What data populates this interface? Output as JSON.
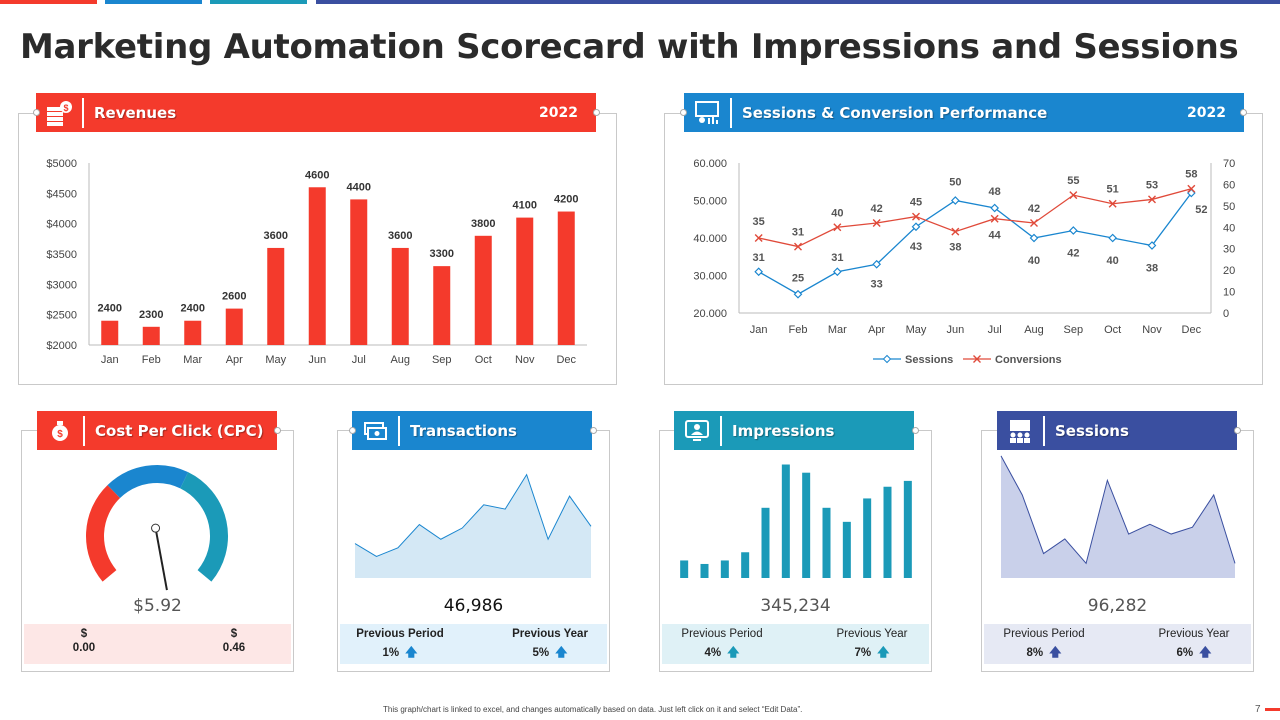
{
  "page_title": "Marketing Automation Scorecard with Impressions and Sessions",
  "footer_note": "This graph/chart is linked to excel, and changes automatically based on data. Just left click on it and select “Edit Data”.",
  "page_number": "7",
  "colors": {
    "red": "#f43a2c",
    "blue": "#1a86cf",
    "teal": "#1b9ab8",
    "navy": "#3a4fa0"
  },
  "revenues": {
    "title": "Revenues",
    "year": "2022",
    "icon": "money-stack-icon"
  },
  "sessions_conv": {
    "title": "Sessions & Conversion Performance",
    "year": "2022",
    "icon": "analytics-person-icon"
  },
  "cpc": {
    "title": "Cost Per Click (CPC)",
    "value": "$5.92",
    "icon": "money-bag-icon",
    "left_label": "$",
    "left_value": "0.00",
    "right_label": "$",
    "right_value": "0.46"
  },
  "transactions": {
    "title": "Transactions",
    "value": "46,986",
    "icon": "money-transfer-icon",
    "prev_period_label": "Previous Period",
    "prev_period_value": "1%",
    "prev_year_label": "Previous Year",
    "prev_year_value": "5%"
  },
  "impressions": {
    "title": "Impressions",
    "value": "345,234",
    "icon": "monitor-user-icon",
    "prev_period_label": "Previous Period",
    "prev_period_value": "4%",
    "prev_year_label": "Previous Year",
    "prev_year_value": "7%"
  },
  "sessions": {
    "title": "Sessions",
    "value": "96,282",
    "icon": "presentation-group-icon",
    "prev_period_label": "Previous Period",
    "prev_period_value": "8%",
    "prev_year_label": "Previous Year",
    "prev_year_value": "6%"
  },
  "chart_data": [
    {
      "type": "bar",
      "categories": [
        "Jan",
        "Feb",
        "Mar",
        "Apr",
        "May",
        "Jun",
        "Jul",
        "Aug",
        "Sep",
        "Oct",
        "Nov",
        "Dec"
      ],
      "values": [
        2400,
        2300,
        2400,
        2600,
        3600,
        4600,
        4400,
        3600,
        3300,
        3800,
        4100,
        4200
      ],
      "ylim": [
        2000,
        5000
      ],
      "yticks": [
        "$2000",
        "$2500",
        "$3000",
        "$3500",
        "$4000",
        "$4500",
        "$5000"
      ],
      "grid": false,
      "legend": "none",
      "color": "#f43a2c"
    },
    {
      "type": "line",
      "categories": [
        "Jan",
        "Feb",
        "Mar",
        "Apr",
        "May",
        "Jun",
        "Jul",
        "Aug",
        "Sep",
        "Oct",
        "Nov",
        "Dec"
      ],
      "series": [
        {
          "name": "Sessions",
          "axis": "left",
          "values": [
            31,
            25,
            31,
            33,
            43,
            50,
            48,
            40,
            42,
            40,
            38,
            52
          ],
          "labels": [
            "31",
            "25",
            "31",
            "33",
            "43",
            "50",
            "48",
            "40",
            "42",
            "40",
            "38",
            "52"
          ],
          "color": "#1a86cf"
        },
        {
          "name": "Conversions",
          "axis": "right",
          "values": [
            35,
            31,
            40,
            42,
            45,
            38,
            44,
            42,
            55,
            51,
            53,
            58
          ],
          "labels": [
            "35",
            "31",
            "40",
            "42",
            "45",
            "38",
            "44",
            "42",
            "55",
            "51",
            "53",
            "58"
          ],
          "color": "#e04a3a"
        }
      ],
      "ylim_left": [
        20,
        60
      ],
      "yticks_left": [
        "20.000",
        "30.000",
        "40.000",
        "50.000",
        "60.000"
      ],
      "ylim_right": [
        0,
        70
      ],
      "yticks_right": [
        "0",
        "10",
        "20",
        "30",
        "40",
        "50",
        "60",
        "70"
      ],
      "legend": "bottom",
      "grid": false
    },
    {
      "type": "gauge",
      "value": 0.46,
      "range": [
        0,
        1
      ],
      "segments": [
        "#f43a2c",
        "#1a86cf",
        "#1b9ab8"
      ]
    },
    {
      "type": "area",
      "values": [
        40,
        25,
        35,
        62,
        45,
        58,
        85,
        80,
        120,
        45,
        95,
        60
      ],
      "color": "#1a86cf"
    },
    {
      "type": "bar",
      "values": [
        15,
        12,
        15,
        22,
        60,
        97,
        90,
        60,
        48,
        68,
        78,
        83
      ],
      "color": "#1b9ab8"
    },
    {
      "type": "area",
      "values": [
        125,
        85,
        25,
        40,
        15,
        100,
        45,
        55,
        45,
        52,
        85,
        15
      ],
      "color": "#3a4fa0"
    }
  ]
}
